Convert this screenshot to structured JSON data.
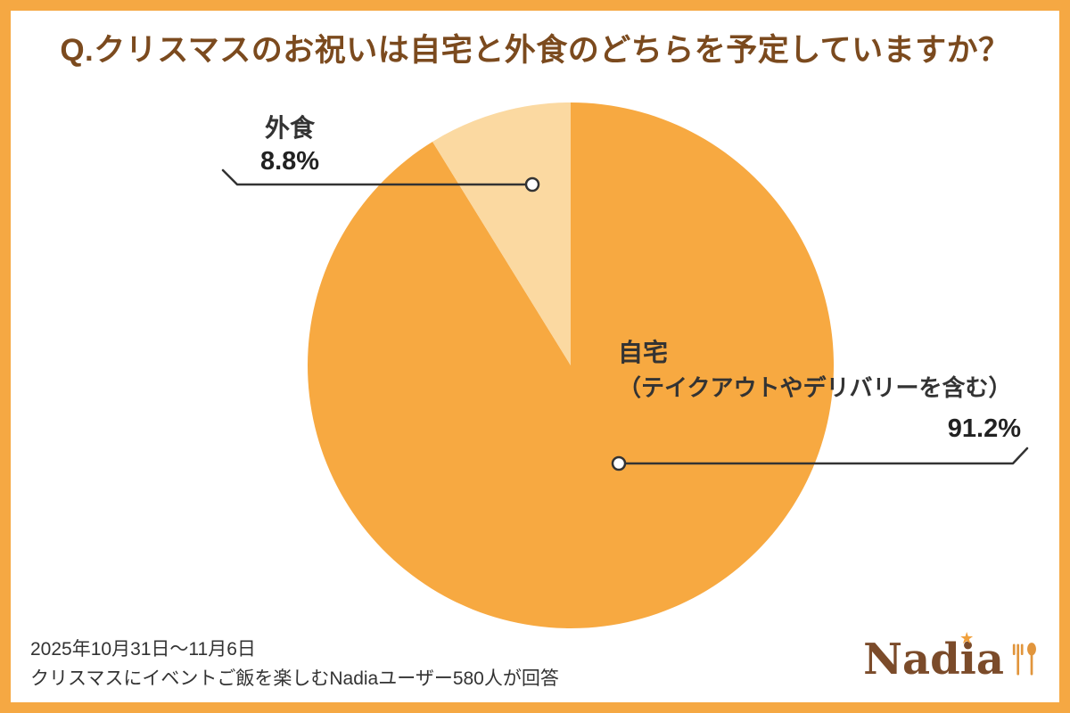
{
  "chart_data": {
    "type": "pie",
    "title": "Q.クリスマスのお祝いは自宅と外食のどちらを予定していますか？",
    "unit": "%",
    "start_angle_deg": -90,
    "direction": "clockwise",
    "legend_position": "none",
    "slices": [
      {
        "label": "自宅（テイクアウトやデリバリーを含む）",
        "value": 91.2,
        "color": "#F7A941"
      },
      {
        "label": "外食",
        "value": 8.8,
        "color": "#FBD9A1"
      }
    ]
  },
  "callouts": {
    "eating_out": {
      "name": "外食",
      "pct": "8.8%"
    },
    "home": {
      "name": "自宅",
      "sub": "（テイクアウトやデリバリーを含む）",
      "pct": "91.2%"
    }
  },
  "footer": {
    "line1": "2025年10月31日～11月6日",
    "line2": "クリスマスにイベントご飯を楽しむNadiaユーザー580人が回答"
  },
  "brand": {
    "name": "Nadia"
  },
  "colors": {
    "frame": "#F5A843",
    "title_text": "#7B4A1E",
    "body_text": "#333333",
    "slice_home": "#F7A941",
    "slice_eating_out": "#FBD9A1",
    "brand_brown": "#7B4B2A",
    "brand_orange": "#F0A03C"
  }
}
